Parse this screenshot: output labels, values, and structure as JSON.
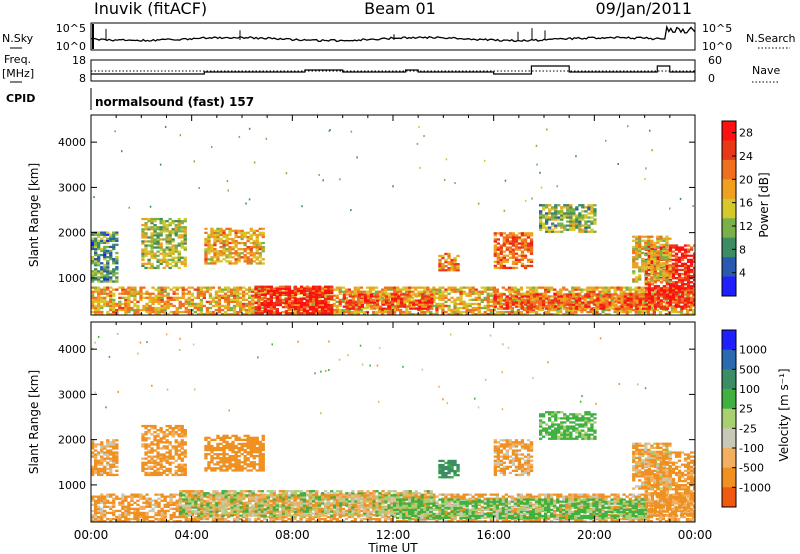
{
  "header": {
    "station": "Inuvik (fitACF)",
    "beam": "Beam 01",
    "date": "09/Jan/2011"
  },
  "sky_panel": {
    "left_label": "N.Sky",
    "right_label": "N.Search",
    "left_ticks": [
      "10^5",
      "10^0"
    ],
    "right_ticks": [
      "10^5",
      "10^0"
    ]
  },
  "freq_panel": {
    "label_line1": "Freq.",
    "label_line2": "[MHz]",
    "left_ticks": [
      "18",
      "8"
    ],
    "right_ticks": [
      "60",
      "0"
    ],
    "right_label": "Nave"
  },
  "cpid": {
    "label": "CPID",
    "value": "normalsound (fast) 157"
  },
  "colors": {
    "power": [
      "#2020ff",
      "#2a5ab0",
      "#3c8c64",
      "#7ab04a",
      "#d4c82a",
      "#f0a020",
      "#f07020",
      "#e83818",
      "#ff1010"
    ],
    "velocity": [
      "#ff1010",
      "#f05a10",
      "#f09020",
      "#f0b060",
      "#c8c8b8",
      "#a8d070",
      "#40b040",
      "#3c8c64",
      "#2a6ab0",
      "#2020ff"
    ]
  },
  "chart_data": [
    {
      "type": "heatmap",
      "title": "",
      "ylabel": "Slant Range [km]",
      "xlabel": "",
      "ylim": [
        180,
        4600
      ],
      "yticks": [
        "1000",
        "2000",
        "3000",
        "4000"
      ],
      "x_ticks": [
        "00:00",
        "04:00",
        "08:00",
        "12:00",
        "16:00",
        "20:00",
        "00:00"
      ],
      "colorbar": {
        "label": "Power [dB]",
        "ticks": [
          "4",
          "8",
          "12",
          "16",
          "20",
          "24",
          "28"
        ],
        "range": [
          0,
          30
        ]
      },
      "regions": [
        {
          "t0": 0.0,
          "t1": 24.0,
          "r0": 180,
          "r1": 800,
          "value": 18
        },
        {
          "t0": 6.5,
          "t1": 9.5,
          "r0": 200,
          "r1": 800,
          "value": 27
        },
        {
          "t0": 10.0,
          "t1": 13.5,
          "r0": 300,
          "r1": 650,
          "value": 24
        },
        {
          "t0": 16.0,
          "t1": 22.0,
          "r0": 300,
          "r1": 650,
          "value": 23
        },
        {
          "t0": 22.0,
          "t1": 24.0,
          "r0": 300,
          "r1": 1700,
          "value": 27
        },
        {
          "t0": 0.0,
          "t1": 1.0,
          "r0": 900,
          "r1": 2000,
          "value": 9
        },
        {
          "t0": 2.0,
          "t1": 3.8,
          "r0": 1200,
          "r1": 2300,
          "value": 14
        },
        {
          "t0": 4.5,
          "t1": 6.8,
          "r0": 1300,
          "r1": 2100,
          "value": 18
        },
        {
          "t0": 13.8,
          "t1": 14.6,
          "r0": 1150,
          "r1": 1550,
          "value": 20
        },
        {
          "t0": 16.0,
          "t1": 17.5,
          "r0": 1200,
          "r1": 2000,
          "value": 22
        },
        {
          "t0": 17.8,
          "t1": 20.0,
          "r0": 2000,
          "r1": 2600,
          "value": 12
        },
        {
          "t0": 21.5,
          "t1": 23.0,
          "r0": 900,
          "r1": 1900,
          "value": 16
        }
      ]
    },
    {
      "type": "heatmap",
      "title": "",
      "ylabel": "Slant Range [km]",
      "xlabel": "Time UT",
      "ylim": [
        180,
        4600
      ],
      "yticks": [
        "1000",
        "2000",
        "3000",
        "4000"
      ],
      "x_ticks": [
        "00:00",
        "04:00",
        "08:00",
        "12:00",
        "16:00",
        "20:00",
        "00:00"
      ],
      "colorbar": {
        "label": "Velocity [m s⁻¹]",
        "ticks": [
          "1000",
          "500",
          "100",
          "25",
          "-25",
          "-100",
          "-500",
          "-1000"
        ]
      },
      "regions": [
        {
          "t0": 0.0,
          "t1": 24.0,
          "r0": 180,
          "r1": 800,
          "value": -150
        },
        {
          "t0": 3.5,
          "t1": 13.5,
          "r0": 300,
          "r1": 850,
          "value": 0
        },
        {
          "t0": 12.0,
          "t1": 22.0,
          "r0": 250,
          "r1": 700,
          "value": 150
        },
        {
          "t0": 22.0,
          "t1": 24.0,
          "r0": 300,
          "r1": 1700,
          "value": -200
        },
        {
          "t0": 0.0,
          "t1": 1.0,
          "r0": 1200,
          "r1": 2000,
          "value": -150
        },
        {
          "t0": 2.0,
          "t1": 3.8,
          "r0": 1200,
          "r1": 2300,
          "value": -200
        },
        {
          "t0": 4.5,
          "t1": 6.8,
          "r0": 1300,
          "r1": 2100,
          "value": -300
        },
        {
          "t0": 13.8,
          "t1": 14.6,
          "r0": 1150,
          "r1": 1550,
          "value": 600
        },
        {
          "t0": 16.0,
          "t1": 17.5,
          "r0": 1200,
          "r1": 2000,
          "value": -150
        },
        {
          "t0": 17.8,
          "t1": 20.0,
          "r0": 2000,
          "r1": 2600,
          "value": 200
        },
        {
          "t0": 21.5,
          "t1": 23.0,
          "r0": 900,
          "r1": 1900,
          "value": -120
        }
      ]
    }
  ]
}
